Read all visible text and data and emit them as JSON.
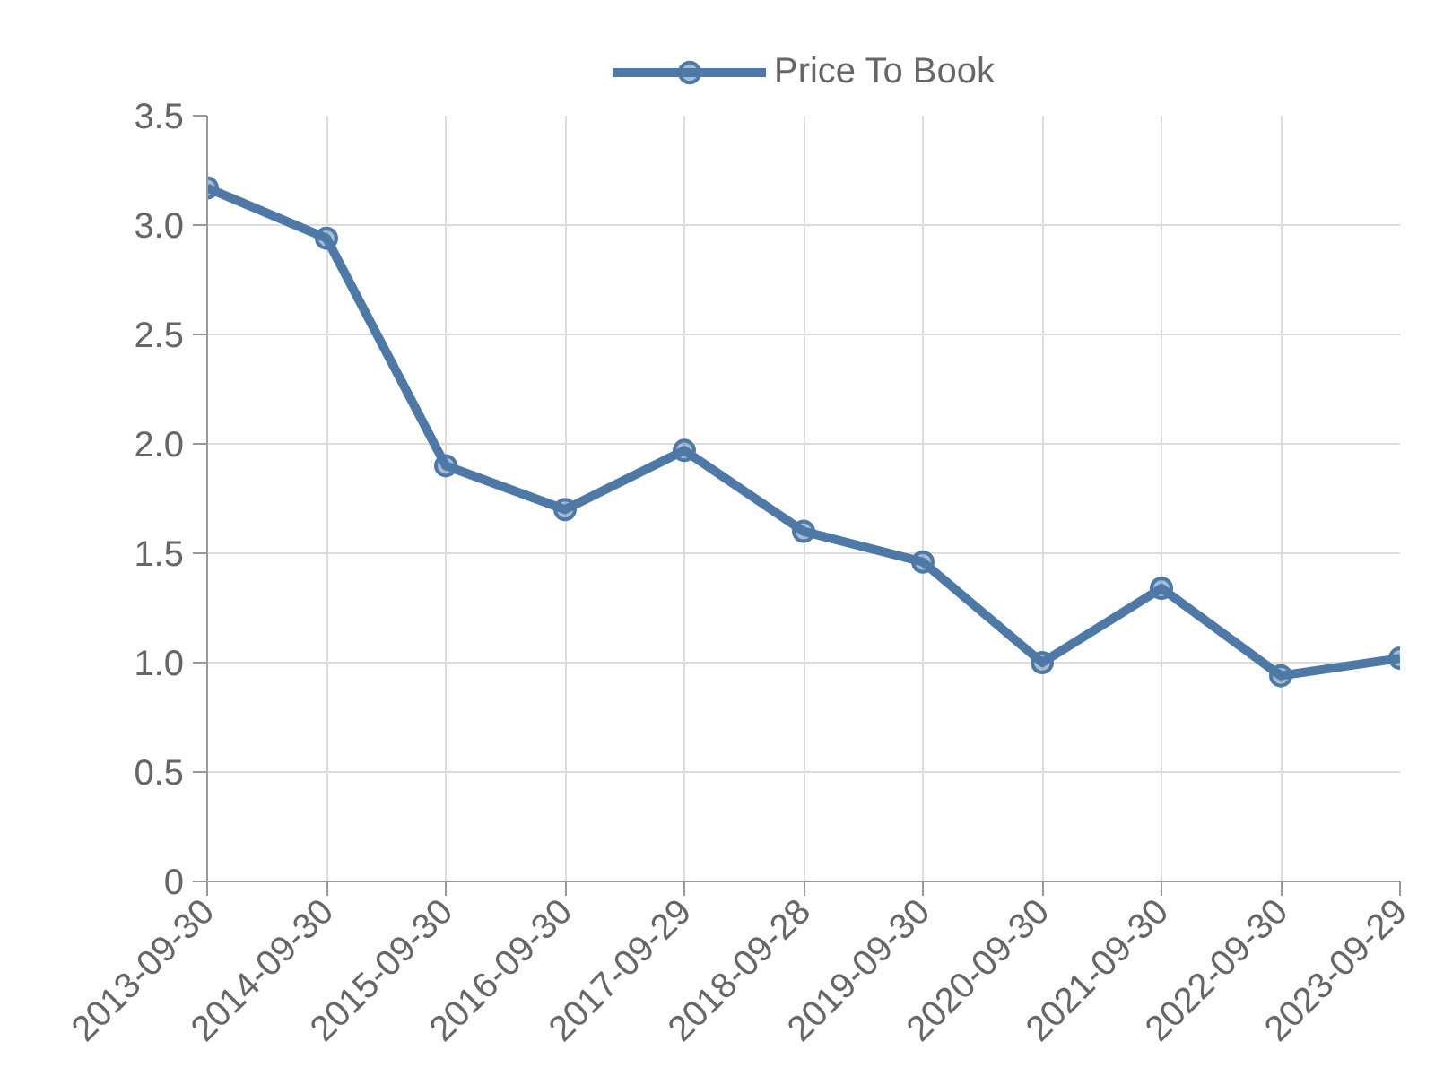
{
  "chart_data": {
    "type": "line",
    "categories": [
      "2013-09-30",
      "2014-09-30",
      "2015-09-30",
      "2016-09-30",
      "2017-09-29",
      "2018-09-28",
      "2019-09-30",
      "2020-09-30",
      "2021-09-30",
      "2022-09-30",
      "2023-09-29"
    ],
    "series": [
      {
        "name": "Price To Book",
        "color": "#4e79a7",
        "values": [
          3.17,
          2.94,
          1.9,
          1.7,
          1.97,
          1.6,
          1.46,
          1.0,
          1.34,
          0.94,
          1.02
        ]
      }
    ],
    "ylim": [
      0,
      3.5
    ],
    "yticks": [
      0,
      {
        "value": 0.5,
        "label": "0.5"
      },
      {
        "value": 1,
        "label": "1.0"
      },
      {
        "value": 1.5,
        "label": "1.5"
      },
      {
        "value": 2,
        "label": "2.0"
      },
      {
        "value": 2.5,
        "label": "2.5"
      },
      {
        "value": 3,
        "label": "3.0"
      },
      {
        "value": 3.5,
        "label": "3.5"
      }
    ],
    "grid": true,
    "legend": "top",
    "marker": "circle",
    "line_style": "solid"
  }
}
